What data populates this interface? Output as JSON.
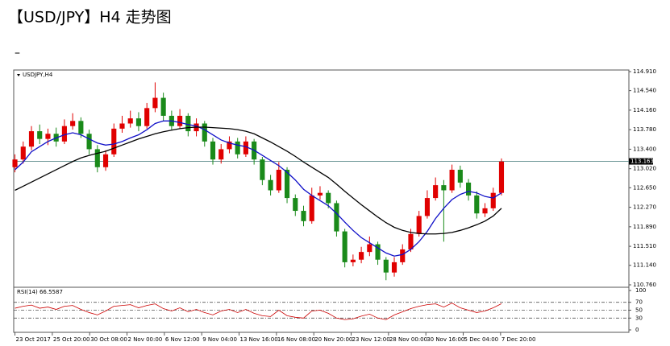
{
  "chart_data": {
    "type": "candlestick",
    "title": "【USD/JPY】H4 走势图",
    "subtitle": "–",
    "symbol_label": "USDJPY,H4",
    "up_color": "#e00000",
    "down_color": "#1a8a1a",
    "open": [
      113.05,
      113.2,
      113.45,
      113.75,
      113.6,
      113.7,
      113.55,
      113.85,
      113.95,
      113.7,
      113.4,
      113.05,
      113.3,
      113.8,
      113.9,
      114.0,
      113.85,
      114.2,
      114.4,
      114.05,
      113.85,
      114.05,
      113.75,
      113.9,
      113.55,
      113.2,
      113.4,
      113.55,
      113.3,
      113.55,
      113.2,
      112.8,
      112.6,
      113.0,
      112.45,
      112.2,
      112.0,
      112.5,
      112.55,
      112.35,
      111.8,
      111.2,
      111.25,
      111.4,
      111.55,
      111.25,
      111.0,
      111.2,
      111.45,
      111.75,
      112.1,
      112.45,
      112.7,
      112.6,
      113.0,
      112.75,
      112.5,
      112.15,
      112.25,
      112.55
    ],
    "high": [
      113.3,
      113.55,
      113.85,
      113.88,
      113.8,
      113.82,
      113.98,
      114.1,
      114.02,
      113.78,
      113.48,
      113.38,
      113.9,
      114.05,
      114.15,
      114.12,
      114.3,
      114.7,
      114.5,
      114.15,
      114.18,
      114.1,
      114.0,
      113.95,
      113.62,
      113.5,
      113.65,
      113.62,
      113.65,
      113.6,
      113.25,
      112.9,
      113.15,
      113.05,
      112.52,
      112.3,
      112.65,
      112.68,
      112.6,
      112.4,
      111.85,
      111.35,
      111.5,
      111.7,
      111.6,
      111.3,
      111.3,
      111.55,
      111.85,
      112.2,
      112.6,
      112.85,
      112.8,
      113.1,
      113.08,
      112.82,
      112.58,
      112.35,
      112.65,
      113.22
    ],
    "low": [
      112.95,
      113.12,
      113.38,
      113.5,
      113.48,
      113.45,
      113.5,
      113.78,
      113.62,
      113.3,
      112.95,
      112.98,
      113.25,
      113.72,
      113.82,
      113.75,
      113.8,
      114.12,
      113.95,
      113.78,
      113.8,
      113.65,
      113.65,
      113.45,
      113.1,
      113.12,
      113.32,
      113.22,
      113.25,
      113.1,
      112.7,
      112.5,
      112.55,
      112.35,
      112.1,
      111.9,
      111.95,
      112.42,
      112.25,
      111.7,
      111.1,
      111.12,
      111.18,
      111.32,
      111.15,
      110.85,
      110.92,
      111.15,
      111.4,
      111.7,
      112.05,
      112.4,
      111.6,
      112.55,
      112.65,
      112.4,
      112.05,
      112.08,
      112.2,
      112.5
    ],
    "close": [
      113.2,
      113.45,
      113.75,
      113.6,
      113.7,
      113.55,
      113.85,
      113.95,
      113.7,
      113.4,
      113.05,
      113.3,
      113.8,
      113.9,
      114.0,
      113.85,
      114.2,
      114.4,
      114.05,
      113.85,
      114.05,
      113.75,
      113.9,
      113.55,
      113.2,
      113.4,
      113.55,
      113.3,
      113.55,
      113.2,
      112.8,
      112.6,
      113.0,
      112.45,
      112.2,
      112.0,
      112.5,
      112.55,
      112.35,
      111.8,
      111.2,
      111.25,
      111.4,
      111.55,
      111.25,
      111.0,
      111.2,
      111.45,
      111.75,
      112.1,
      112.45,
      112.7,
      112.6,
      113.0,
      112.75,
      112.5,
      112.15,
      112.25,
      112.55,
      113.16
    ],
    "lines": [
      {
        "color": "#1010c8",
        "values": [
          113.0,
          113.15,
          113.35,
          113.45,
          113.55,
          113.62,
          113.68,
          113.72,
          113.68,
          113.6,
          113.52,
          113.48,
          113.5,
          113.55,
          113.62,
          113.68,
          113.78,
          113.9,
          113.95,
          113.95,
          113.92,
          113.88,
          113.85,
          113.78,
          113.68,
          113.58,
          113.52,
          113.48,
          113.45,
          113.38,
          113.28,
          113.18,
          113.08,
          112.95,
          112.8,
          112.62,
          112.5,
          112.4,
          112.3,
          112.15,
          111.98,
          111.82,
          111.68,
          111.58,
          111.48,
          111.38,
          111.32,
          111.35,
          111.45,
          111.6,
          111.8,
          112.05,
          112.25,
          112.42,
          112.52,
          112.58,
          112.55,
          112.48,
          112.45,
          112.55
        ]
      },
      {
        "color": "#000000",
        "values": [
          112.6,
          112.68,
          112.76,
          112.84,
          112.92,
          113.0,
          113.08,
          113.16,
          113.23,
          113.28,
          113.32,
          113.36,
          113.42,
          113.48,
          113.54,
          113.6,
          113.65,
          113.7,
          113.74,
          113.77,
          113.8,
          113.82,
          113.83,
          113.83,
          113.82,
          113.81,
          113.8,
          113.78,
          113.75,
          113.7,
          113.62,
          113.54,
          113.45,
          113.36,
          113.26,
          113.15,
          113.05,
          112.95,
          112.85,
          112.72,
          112.58,
          112.45,
          112.32,
          112.2,
          112.08,
          111.97,
          111.88,
          111.82,
          111.78,
          111.76,
          111.75,
          111.75,
          111.76,
          111.78,
          111.82,
          111.87,
          111.93,
          112.0,
          112.1,
          112.25
        ]
      }
    ],
    "current_price": 113.163,
    "xlim": [
      -0.15,
      74.45
    ],
    "xticks": [
      {
        "value": 0,
        "label": "23 Oct 2017"
      },
      {
        "value": 4.53,
        "label": "25 Oct 20:00"
      },
      {
        "value": 9.06,
        "label": "30 Oct 08:00"
      },
      {
        "value": 13.59,
        "label": "2 Nov 00:00"
      },
      {
        "value": 18.12,
        "label": "6 Nov 12:00"
      },
      {
        "value": 22.65,
        "label": "9 Nov 04:00"
      },
      {
        "value": 27.18,
        "label": "13 Nov 16:00"
      },
      {
        "value": 31.71,
        "label": "16 Nov 08:00"
      },
      {
        "value": 36.24,
        "label": "20 Nov 20:00"
      },
      {
        "value": 40.77,
        "label": "23 Nov 12:00"
      },
      {
        "value": 45.3,
        "label": "28 Nov 00:00"
      },
      {
        "value": 49.83,
        "label": "30 Nov 16:00"
      },
      {
        "value": 54.36,
        "label": "5 Dec 04:00"
      },
      {
        "value": 58.89,
        "label": "7 Dec 20:00"
      }
    ],
    "ylim": [
      110.76,
      114.91
    ],
    "yticks": [
      {
        "value": 114.91,
        "label": "114.910"
      },
      {
        "value": 114.54,
        "label": "114.540"
      },
      {
        "value": 114.16,
        "label": "114.160"
      },
      {
        "value": 113.78,
        "label": "113.780"
      },
      {
        "value": 113.4,
        "label": "113.400"
      },
      {
        "value": 113.02,
        "label": "113.020"
      },
      {
        "value": 112.65,
        "label": "112.650"
      },
      {
        "value": 112.27,
        "label": "112.270"
      },
      {
        "value": 111.89,
        "label": "111.890"
      },
      {
        "value": 111.51,
        "label": "111.510"
      },
      {
        "value": 111.14,
        "label": "111.140"
      },
      {
        "value": 110.76,
        "label": "110.760"
      }
    ],
    "rsi": {
      "label": "RSI(14) 66.5587",
      "color": "#cc0000",
      "values": [
        55,
        60,
        63,
        55,
        58,
        52,
        60,
        62,
        52,
        44,
        38,
        48,
        60,
        62,
        64,
        56,
        62,
        66,
        54,
        48,
        56,
        46,
        52,
        44,
        38,
        48,
        52,
        44,
        52,
        42,
        36,
        34,
        50,
        36,
        32,
        30,
        48,
        50,
        42,
        30,
        26,
        28,
        35,
        40,
        30,
        26,
        38,
        46,
        54,
        60,
        64,
        66,
        58,
        68,
        56,
        50,
        44,
        48,
        56,
        66.56
      ],
      "ylim": [
        0,
        100
      ],
      "yticks": [
        100,
        70,
        50,
        30,
        0
      ]
    }
  }
}
